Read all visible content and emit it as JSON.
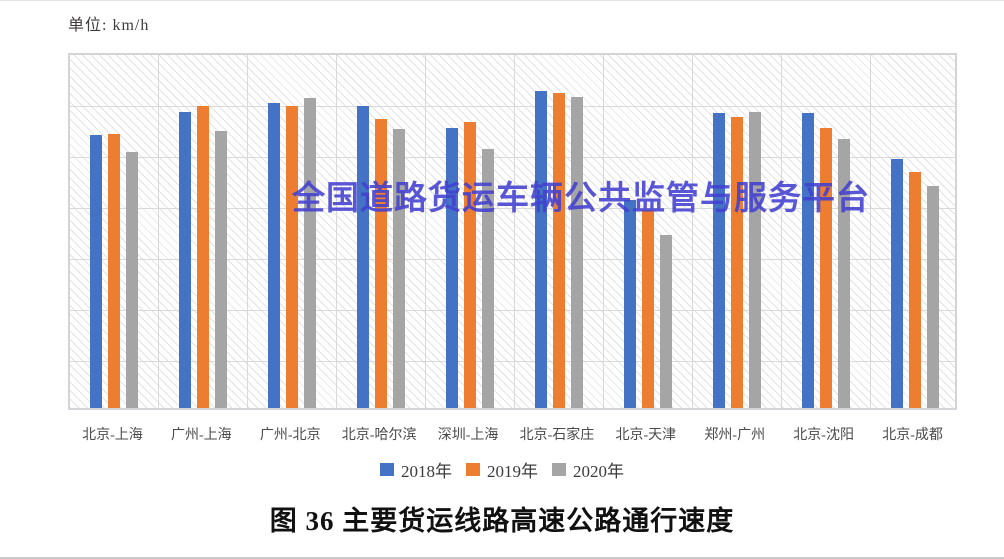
{
  "unit_label": "单位: km/h",
  "watermark_text": "全国道路货运车辆公共监管与服务平台",
  "caption": "图 36 主要货运线路高速公路通行速度",
  "colors": {
    "series_2018": "#4472C4",
    "series_2019": "#ED7D31",
    "series_2020": "#A5A5A5",
    "watermark": "#4240D0",
    "gridline": "#D9D9DC",
    "axis_text": "#3D3D3D"
  },
  "chart_data": {
    "type": "bar",
    "title": "图 36 主要货运线路高速公路通行速度",
    "unit": "km/h",
    "categories": [
      "北京-上海",
      "广州-上海",
      "广州-北京",
      "北京-哈尔滨",
      "深圳-上海",
      "北京-石家庄",
      "北京-天津",
      "郑州-广州",
      "北京-沈阳",
      "北京-成都"
    ],
    "series": [
      {
        "name": "2018年",
        "color": "#4472C4",
        "values": [
          71.4,
          73.2,
          73.9,
          73.7,
          72.0,
          74.9,
          66.3,
          73.1,
          73.1,
          69.5
        ]
      },
      {
        "name": "2019年",
        "color": "#ED7D31",
        "values": [
          71.5,
          73.7,
          73.7,
          72.7,
          72.4,
          74.7,
          65.5,
          72.8,
          72.0,
          68.5
        ]
      },
      {
        "name": "2020年",
        "color": "#A5A5A5",
        "values": [
          70.1,
          71.7,
          74.3,
          71.9,
          70.3,
          74.4,
          63.6,
          73.2,
          71.1,
          67.4
        ]
      }
    ],
    "ylim": [
      50,
      78
    ],
    "yticks": [
      78,
      74,
      70,
      66,
      62,
      58,
      54,
      50
    ],
    "ytick_format": "0.00",
    "grid": true,
    "hatch_background": true,
    "legend_position": "bottom",
    "xlabel": "",
    "ylabel": "km/h"
  }
}
